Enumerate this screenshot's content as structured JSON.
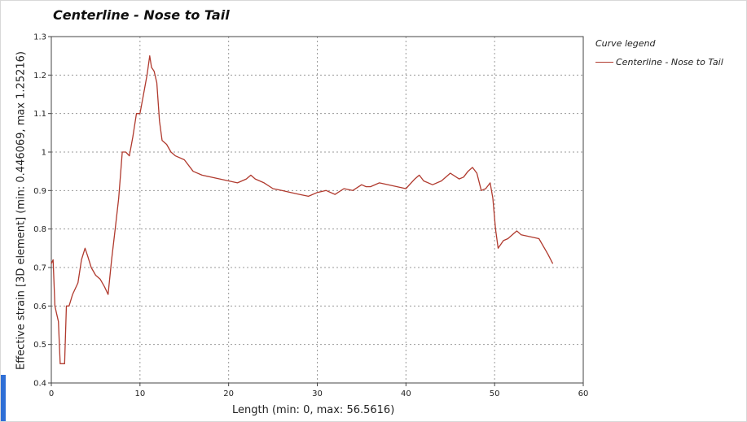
{
  "chart_data": {
    "type": "line",
    "title": "Centerline - Nose to Tail",
    "xlabel": "Length (min: 0, max: 56.5616)",
    "ylabel": "Effective strain [3D element] (min: 0.446069, max 1.25216)",
    "xlim": [
      0,
      60
    ],
    "ylim": [
      0.4,
      1.3
    ],
    "xticks": [
      0,
      10,
      20,
      30,
      40,
      50,
      60
    ],
    "yticks": [
      0.4,
      0.5,
      0.6,
      0.7,
      0.8,
      0.9,
      1,
      1.1,
      1.2,
      1.3
    ],
    "ytick_labels": [
      "0.4",
      "0.5",
      "0.6",
      "0.7",
      "0.8",
      "0.9",
      "1",
      "1.1",
      "1.2",
      "1.3"
    ],
    "grid": true,
    "legend": {
      "title": "Curve legend",
      "position": "right"
    },
    "series": [
      {
        "name": "Centerline - Nose to Tail",
        "color": "#b03a2e",
        "x": [
          0,
          0.2,
          0.4,
          0.6,
          0.8,
          1.0,
          1.2,
          1.5,
          1.7,
          2.0,
          2.4,
          3.0,
          3.4,
          3.8,
          4.1,
          4.5,
          5.0,
          5.5,
          6.0,
          6.4,
          6.8,
          7.2,
          7.6,
          8.0,
          8.4,
          8.8,
          9.2,
          9.6,
          10.0,
          10.4,
          10.8,
          11.1,
          11.3,
          11.6,
          11.9,
          12.2,
          12.5,
          13.0,
          13.5,
          14.0,
          15.0,
          16.0,
          17.0,
          18.0,
          19.0,
          20.0,
          21.0,
          22.0,
          22.5,
          23.0,
          24.0,
          25.0,
          26.0,
          27.0,
          28.0,
          29.0,
          30.0,
          31.0,
          32.0,
          33.0,
          34.0,
          35.0,
          35.5,
          36.0,
          37.0,
          38.0,
          39.0,
          40.0,
          41.0,
          41.5,
          42.0,
          43.0,
          44.0,
          45.0,
          46.0,
          46.5,
          47.0,
          47.5,
          48.0,
          48.5,
          49.0,
          49.5,
          49.8,
          50.1,
          50.4,
          51.0,
          51.5,
          52.0,
          52.5,
          53.0,
          54.0,
          55.0,
          56.0,
          56.56
        ],
        "y": [
          0.71,
          0.72,
          0.6,
          0.58,
          0.56,
          0.45,
          0.45,
          0.45,
          0.6,
          0.6,
          0.63,
          0.66,
          0.72,
          0.75,
          0.73,
          0.7,
          0.68,
          0.67,
          0.65,
          0.63,
          0.72,
          0.8,
          0.88,
          1.0,
          1.0,
          0.99,
          1.04,
          1.1,
          1.1,
          1.15,
          1.2,
          1.25,
          1.22,
          1.21,
          1.18,
          1.08,
          1.03,
          1.02,
          1.0,
          0.99,
          0.98,
          0.95,
          0.94,
          0.935,
          0.93,
          0.925,
          0.92,
          0.93,
          0.94,
          0.93,
          0.92,
          0.905,
          0.9,
          0.895,
          0.89,
          0.885,
          0.895,
          0.9,
          0.89,
          0.905,
          0.9,
          0.915,
          0.91,
          0.91,
          0.92,
          0.915,
          0.91,
          0.905,
          0.93,
          0.94,
          0.925,
          0.915,
          0.925,
          0.945,
          0.93,
          0.935,
          0.95,
          0.96,
          0.945,
          0.9,
          0.905,
          0.92,
          0.88,
          0.8,
          0.75,
          0.77,
          0.775,
          0.785,
          0.795,
          0.785,
          0.78,
          0.775,
          0.735,
          0.71
        ]
      }
    ]
  }
}
